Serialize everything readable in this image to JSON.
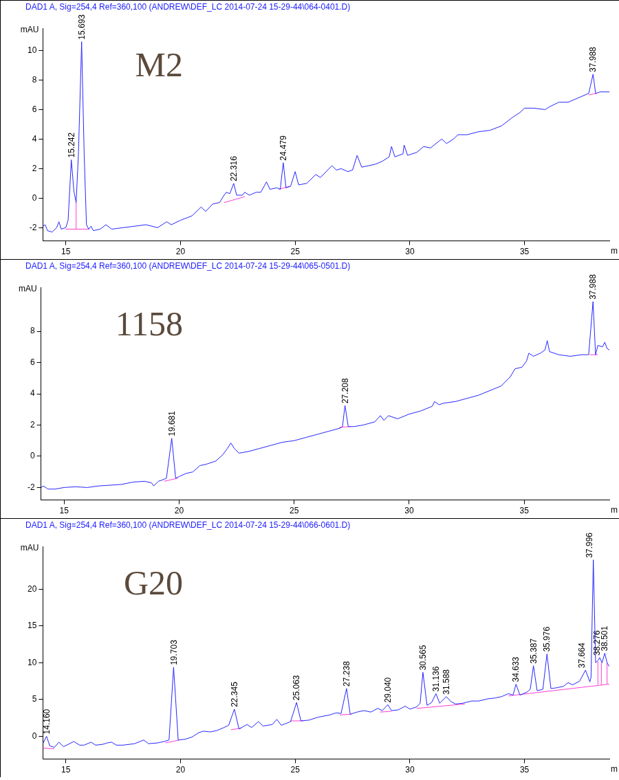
{
  "chart_data": [
    {
      "type": "line",
      "title": "DAD1 A, Sig=254,4 Ref=360,100 (ANDREW\\DEF_LC 2014-07-24 15-29-44\\064-0401.D)",
      "ylabel": "mAU",
      "xlabel": "m",
      "xlim": [
        14,
        38.7
      ],
      "xticks": [
        15,
        20,
        25,
        30,
        35
      ],
      "ylim": [
        -2.9,
        11.5
      ],
      "yticks": [
        -2,
        0,
        2,
        4,
        6,
        8,
        10
      ],
      "series": [
        {
          "color": "#2626ff",
          "x": [
            14.0,
            14.1,
            14.2,
            14.4,
            14.6,
            14.7,
            14.8,
            15.0,
            15.1,
            15.24,
            15.35,
            15.45,
            15.55,
            15.69,
            15.8,
            15.9,
            16.0,
            16.1,
            16.2,
            16.5,
            16.75,
            17.0,
            17.5,
            18.0,
            18.5,
            19.0,
            19.4,
            19.6,
            20.0,
            20.5,
            20.9,
            21.1,
            21.4,
            21.7,
            21.9,
            22.0,
            22.15,
            22.32,
            22.45,
            22.7,
            22.8,
            23.0,
            23.3,
            23.5,
            23.75,
            23.9,
            24.2,
            24.35,
            24.48,
            24.6,
            24.8,
            25.0,
            25.15,
            25.5,
            25.9,
            26.1,
            26.6,
            26.8,
            27.0,
            27.3,
            27.5,
            27.7,
            27.9,
            28.2,
            28.5,
            28.8,
            29.1,
            29.2,
            29.35,
            29.7,
            29.75,
            29.9,
            30.3,
            30.6,
            30.9,
            31.3,
            31.4,
            31.6,
            31.9,
            32.1,
            32.5,
            33.0,
            33.5,
            34.0,
            34.5,
            34.8,
            35.0,
            35.4,
            35.9,
            36.1,
            36.5,
            36.9,
            37.2,
            37.5,
            37.8,
            37.99,
            38.1,
            38.3,
            38.5,
            38.7
          ],
          "values": [
            -1.9,
            -1.8,
            -2.2,
            -2.3,
            -2.0,
            -1.6,
            -2.1,
            -2.0,
            -1.5,
            2.6,
            0.5,
            -0.3,
            3,
            10.6,
            3,
            -1.8,
            -2.1,
            -1.9,
            -2.2,
            -2.1,
            -1.8,
            -2.1,
            -2.0,
            -1.9,
            -1.8,
            -2.0,
            -1.6,
            -1.8,
            -1.5,
            -1.2,
            -0.6,
            -0.9,
            -0.4,
            -0.3,
            0.2,
            0.4,
            0.3,
            1.0,
            0.2,
            0.2,
            0.4,
            0.2,
            0.4,
            0.4,
            1.1,
            0.6,
            0.7,
            0.6,
            2.4,
            0.7,
            0.8,
            1.8,
            0.9,
            1.0,
            1.6,
            1.4,
            2.2,
            1.9,
            2.0,
            1.8,
            1.9,
            2.9,
            2.1,
            2.2,
            2.3,
            2.5,
            2.8,
            3.5,
            2.8,
            3.0,
            3.6,
            2.9,
            3.1,
            3.5,
            3.4,
            3.9,
            4.0,
            3.7,
            4.0,
            4.3,
            4.3,
            4.5,
            4.6,
            4.9,
            5.5,
            5.8,
            6.1,
            6.1,
            6.0,
            6.2,
            6.5,
            6.5,
            6.7,
            6.9,
            7.1,
            8.4,
            7.1,
            7.2,
            7.2,
            7.2
          ]
        },
        {
          "color": "#ff3cd2",
          "x": [
            15.0,
            16.0
          ],
          "values": [
            -2.1,
            -2.1
          ]
        },
        {
          "color": "#ff3cd2",
          "x": [
            15.45,
            15.45
          ],
          "values": [
            -2.1,
            -0.3
          ]
        },
        {
          "color": "#ff3cd2",
          "x": [
            21.9,
            22.8
          ],
          "values": [
            -0.3,
            0.1
          ]
        },
        {
          "color": "#ff3cd2",
          "x": [
            24.3,
            24.75
          ],
          "values": [
            0.6,
            0.8
          ]
        },
        {
          "color": "#ff3cd2",
          "x": [
            37.8,
            38.15
          ],
          "values": [
            7.0,
            7.1
          ]
        }
      ],
      "annotations": [
        "M2",
        {
          "text": "15.242",
          "x": 15.242,
          "y": 2.6
        },
        {
          "text": "15.693",
          "x": 15.693,
          "y": 10.6
        },
        {
          "text": "22.316",
          "x": 22.316,
          "y": 1.0
        },
        {
          "text": "24.479",
          "x": 24.479,
          "y": 2.4
        },
        {
          "text": "37.988",
          "x": 37.988,
          "y": 8.4
        }
      ]
    },
    {
      "type": "line",
      "title": "DAD1 A, Sig=254,4 Ref=360,100 (ANDREW\\DEF_LC 2014-07-24 15-29-44\\065-0501.D)",
      "ylabel": "mAU",
      "xlabel": "m",
      "xlim": [
        14,
        38.7
      ],
      "xticks": [
        15,
        20,
        25,
        30,
        35
      ],
      "ylim": [
        -2.8,
        10.8
      ],
      "yticks": [
        -2,
        0,
        2,
        4,
        6,
        8
      ],
      "series": [
        {
          "color": "#2626ff",
          "x": [
            14.0,
            14.1,
            14.3,
            14.6,
            15.0,
            15.5,
            16.0,
            16.5,
            17.0,
            17.5,
            18.0,
            18.5,
            18.8,
            18.9,
            19.1,
            19.3,
            19.45,
            19.68,
            19.85,
            20.0,
            20.3,
            20.6,
            20.9,
            21.2,
            21.6,
            21.9,
            22.1,
            22.25,
            22.4,
            22.6,
            23.0,
            23.5,
            24.0,
            24.5,
            25.0,
            25.5,
            26.0,
            26.5,
            27.0,
            27.1,
            27.21,
            27.35,
            27.6,
            28.0,
            28.5,
            28.75,
            28.9,
            29.1,
            29.5,
            30.0,
            30.5,
            31.0,
            31.1,
            31.3,
            31.5,
            32.0,
            32.5,
            33.0,
            33.5,
            34.0,
            34.4,
            34.6,
            34.9,
            35.1,
            35.2,
            35.4,
            35.7,
            35.9,
            36.0,
            36.1,
            36.5,
            37.0,
            37.5,
            37.8,
            37.99,
            38.1,
            38.2,
            38.4,
            38.5,
            38.6,
            38.7
          ],
          "values": [
            -2.0,
            -1.9,
            -2.1,
            -2.1,
            -2.0,
            -1.95,
            -2.0,
            -1.9,
            -1.85,
            -1.8,
            -1.65,
            -1.6,
            -1.7,
            -1.9,
            -1.6,
            -1.5,
            -1.4,
            1.15,
            -1.4,
            -1.3,
            -1.1,
            -1.0,
            -0.6,
            -0.5,
            -0.3,
            0.1,
            0.5,
            0.85,
            0.5,
            0.2,
            0.3,
            0.5,
            0.7,
            0.9,
            1.0,
            1.2,
            1.4,
            1.6,
            1.8,
            1.9,
            3.25,
            1.9,
            1.9,
            2.0,
            2.2,
            2.6,
            2.3,
            2.6,
            2.4,
            2.7,
            2.9,
            3.2,
            3.5,
            3.3,
            3.4,
            3.5,
            3.7,
            3.9,
            4.2,
            4.5,
            5.1,
            5.6,
            5.7,
            6.1,
            6.6,
            6.4,
            6.6,
            6.8,
            7.4,
            6.7,
            6.5,
            6.4,
            6.5,
            6.5,
            9.9,
            6.5,
            7.1,
            7.0,
            7.3,
            6.9,
            6.8
          ]
        },
        {
          "color": "#ff3cd2",
          "x": [
            19.35,
            19.95
          ],
          "values": [
            -1.6,
            -1.4
          ]
        },
        {
          "color": "#ff3cd2",
          "x": [
            26.95,
            27.45
          ],
          "values": [
            1.85,
            1.9
          ]
        },
        {
          "color": "#ff3cd2",
          "x": [
            37.85,
            38.2
          ],
          "values": [
            6.5,
            6.5
          ]
        }
      ],
      "annotations": [
        "1158",
        {
          "text": "19.681",
          "x": 19.681,
          "y": 1.15
        },
        {
          "text": "27.208",
          "x": 27.208,
          "y": 3.25
        },
        {
          "text": "37.988",
          "x": 37.988,
          "y": 9.9
        }
      ]
    },
    {
      "type": "line",
      "title": "DAD1 A, Sig=254,4 Ref=360,100 (ANDREW\\DEF_LC 2014-07-24 15-29-44\\066-0601.D)",
      "ylabel": "mAU",
      "xlabel": "m",
      "xlim": [
        14,
        38.7
      ],
      "xticks": [
        15,
        20,
        25,
        30,
        35
      ],
      "ylim": [
        -3.1,
        25.8
      ],
      "yticks": [
        0,
        5,
        10,
        15,
        20
      ],
      "series": [
        {
          "color": "#2626ff",
          "x": [
            14.0,
            14.16,
            14.3,
            14.5,
            14.7,
            14.9,
            15.1,
            15.35,
            15.6,
            15.8,
            16.1,
            16.3,
            16.6,
            16.8,
            17.0,
            17.2,
            17.5,
            18.0,
            18.4,
            18.6,
            19.0,
            19.3,
            19.5,
            19.7,
            19.9,
            20.2,
            20.5,
            20.8,
            21.0,
            21.3,
            21.6,
            21.9,
            22.1,
            22.35,
            22.55,
            22.9,
            23.1,
            23.4,
            23.6,
            24.0,
            24.2,
            24.4,
            24.8,
            25.06,
            25.25,
            25.6,
            26.0,
            26.5,
            26.8,
            27.0,
            27.24,
            27.4,
            27.7,
            28.0,
            28.3,
            28.6,
            28.8,
            29.04,
            29.2,
            29.5,
            29.8,
            30.0,
            30.3,
            30.45,
            30.57,
            30.75,
            30.95,
            31.14,
            31.3,
            31.59,
            31.8,
            32.0,
            32.3,
            32.7,
            33.0,
            33.4,
            33.7,
            34.0,
            34.3,
            34.5,
            34.63,
            34.8,
            35.1,
            35.25,
            35.39,
            35.55,
            35.8,
            35.98,
            36.15,
            36.4,
            36.7,
            36.9,
            37.1,
            37.4,
            37.66,
            37.85,
            37.9,
            38.0,
            38.1,
            38.2,
            38.28,
            38.38,
            38.5,
            38.6,
            38.7
          ],
          "values": [
            -1.0,
            0.0,
            -1.3,
            -1.5,
            -0.8,
            -1.4,
            -1.1,
            -0.7,
            -1.2,
            -1.2,
            -0.8,
            -1.2,
            -1.1,
            -0.9,
            -0.8,
            -1.2,
            -1.2,
            -1.0,
            -0.5,
            -1.0,
            -0.9,
            -0.7,
            -0.5,
            9.4,
            -0.5,
            -0.4,
            -0.1,
            0.5,
            0.7,
            0.6,
            0.8,
            1.2,
            1.5,
            3.7,
            1.0,
            1.6,
            1.2,
            2.0,
            1.4,
            1.6,
            2.3,
            1.5,
            2.0,
            4.6,
            2.1,
            2.2,
            2.6,
            2.9,
            3.2,
            3.1,
            6.5,
            3.0,
            3.3,
            3.5,
            3.3,
            3.8,
            3.5,
            4.3,
            3.5,
            3.6,
            4.1,
            3.7,
            4.0,
            4.5,
            8.7,
            4.2,
            4.6,
            5.8,
            4.5,
            5.4,
            4.7,
            4.4,
            4.5,
            4.8,
            4.8,
            5.1,
            5.2,
            5.4,
            5.8,
            5.6,
            7.1,
            5.6,
            6.0,
            6.4,
            9.6,
            6.2,
            6.4,
            11.2,
            6.5,
            6.6,
            6.8,
            7.3,
            7.0,
            7.5,
            9.0,
            7.4,
            8.0,
            24.0,
            10.0,
            10.3,
            10.7,
            10.0,
            11.3,
            10.0,
            9.5
          ]
        },
        {
          "color": "#ff3cd2",
          "x": [
            14.0,
            14.5
          ],
          "values": [
            -1.6,
            -1.7
          ]
        },
        {
          "color": "#ff3cd2",
          "x": [
            19.35,
            19.95
          ],
          "values": [
            -0.9,
            -0.5
          ]
        },
        {
          "color": "#ff3cd2",
          "x": [
            22.2,
            22.65
          ],
          "values": [
            0.9,
            1.1
          ]
        },
        {
          "color": "#ff3cd2",
          "x": [
            24.8,
            25.35
          ],
          "values": [
            2.1,
            2.1
          ]
        },
        {
          "color": "#ff3cd2",
          "x": [
            26.95,
            27.45
          ],
          "values": [
            2.9,
            3.0
          ]
        },
        {
          "color": "#ff3cd2",
          "x": [
            28.7,
            29.2
          ],
          "values": [
            3.3,
            3.4
          ]
        },
        {
          "color": "#ff3cd2",
          "x": [
            30.3,
            32.4
          ],
          "values": [
            3.8,
            4.4
          ]
        },
        {
          "color": "#ff3cd2",
          "x": [
            34.3,
            38.7
          ],
          "values": [
            5.5,
            7.1
          ]
        },
        {
          "color": "#ff3cd2",
          "x": [
            38.2,
            38.2
          ],
          "values": [
            7.0,
            10.2
          ]
        },
        {
          "color": "#ff3cd2",
          "x": [
            38.35,
            38.35
          ],
          "values": [
            7.0,
            10.0
          ]
        },
        {
          "color": "#ff3cd2",
          "x": [
            38.6,
            38.6
          ],
          "values": [
            7.1,
            10.0
          ]
        }
      ],
      "annotations": [
        "G20",
        {
          "text": "14.160",
          "x": 14.16,
          "y": 0.0
        },
        {
          "text": "19.703",
          "x": 19.703,
          "y": 9.4
        },
        {
          "text": "22.345",
          "x": 22.345,
          "y": 3.7
        },
        {
          "text": "25.063",
          "x": 25.063,
          "y": 4.6
        },
        {
          "text": "27.238",
          "x": 27.238,
          "y": 6.5
        },
        {
          "text": "29.040",
          "x": 29.04,
          "y": 4.3
        },
        {
          "text": "30.565",
          "x": 30.565,
          "y": 8.7
        },
        {
          "text": "31.136",
          "x": 31.136,
          "y": 5.8
        },
        {
          "text": "31.588",
          "x": 31.588,
          "y": 5.4
        },
        {
          "text": "34.633",
          "x": 34.633,
          "y": 7.1
        },
        {
          "text": "35.387",
          "x": 35.387,
          "y": 9.6
        },
        {
          "text": "35.976",
          "x": 35.976,
          "y": 11.2
        },
        {
          "text": "37.664",
          "x": 37.664,
          "y": 9.0
        },
        {
          "text": "37.996",
          "x": 37.996,
          "y": 24.0
        },
        {
          "text": "38.276",
          "x": 38.276,
          "y": 10.7
        },
        {
          "text": "38.501",
          "x": 38.501,
          "y": 11.3
        }
      ]
    }
  ]
}
